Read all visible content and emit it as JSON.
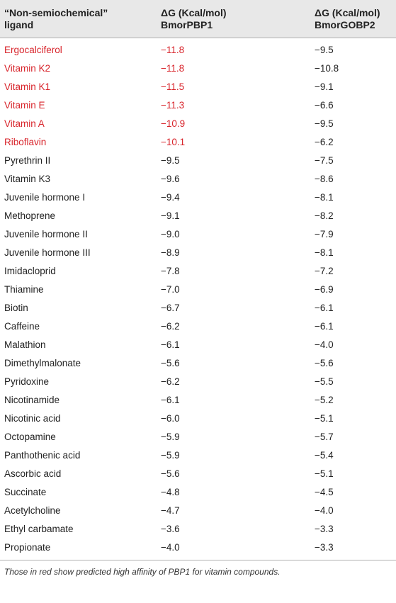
{
  "table": {
    "headers": [
      {
        "line1": "“Non-semiochemical”",
        "line2": "ligand"
      },
      {
        "line1": "ΔG (Kcal/mol)",
        "line2": "BmorPBP1"
      },
      {
        "line1": "ΔG (Kcal/mol)",
        "line2": "BmorGOBP2"
      }
    ],
    "highlight_color": "#d8232a",
    "rows": [
      {
        "ligand": "Ergocalciferol",
        "pbp1": "−11.8",
        "gobp2": "−9.5",
        "highlight": true
      },
      {
        "ligand": "Vitamin K2",
        "pbp1": "−11.8",
        "gobp2": "−10.8",
        "highlight": true
      },
      {
        "ligand": "Vitamin K1",
        "pbp1": "−11.5",
        "gobp2": "−9.1",
        "highlight": true
      },
      {
        "ligand": "Vitamin E",
        "pbp1": "−11.3",
        "gobp2": "−6.6",
        "highlight": true
      },
      {
        "ligand": "Vitamin A",
        "pbp1": "−10.9",
        "gobp2": "−9.5",
        "highlight": true
      },
      {
        "ligand": "Riboflavin",
        "pbp1": "−10.1",
        "gobp2": "−6.2",
        "highlight": true
      },
      {
        "ligand": "Pyrethrin II",
        "pbp1": "−9.5",
        "gobp2": "−7.5",
        "highlight": false
      },
      {
        "ligand": "Vitamin K3",
        "pbp1": "−9.6",
        "gobp2": "−8.6",
        "highlight": false
      },
      {
        "ligand": "Juvenile hormone I",
        "pbp1": "−9.4",
        "gobp2": "−8.1",
        "highlight": false
      },
      {
        "ligand": "Methoprene",
        "pbp1": "−9.1",
        "gobp2": "−8.2",
        "highlight": false
      },
      {
        "ligand": "Juvenile hormone II",
        "pbp1": "−9.0",
        "gobp2": "−7.9",
        "highlight": false
      },
      {
        "ligand": "Juvenile hormone III",
        "pbp1": "−8.9",
        "gobp2": "−8.1",
        "highlight": false
      },
      {
        "ligand": "Imidacloprid",
        "pbp1": "−7.8",
        "gobp2": "−7.2",
        "highlight": false
      },
      {
        "ligand": "Thiamine",
        "pbp1": "−7.0",
        "gobp2": "−6.9",
        "highlight": false
      },
      {
        "ligand": "Biotin",
        "pbp1": "−6.7",
        "gobp2": "−6.1",
        "highlight": false
      },
      {
        "ligand": "Caffeine",
        "pbp1": "−6.2",
        "gobp2": "−6.1",
        "highlight": false
      },
      {
        "ligand": "Malathion",
        "pbp1": "−6.1",
        "gobp2": "−4.0",
        "highlight": false
      },
      {
        "ligand": "Dimethylmalonate",
        "pbp1": "−5.6",
        "gobp2": "−5.6",
        "highlight": false
      },
      {
        "ligand": "Pyridoxine",
        "pbp1": "−6.2",
        "gobp2": "−5.5",
        "highlight": false
      },
      {
        "ligand": "Nicotinamide",
        "pbp1": "−6.1",
        "gobp2": "−5.2",
        "highlight": false
      },
      {
        "ligand": "Nicotinic acid",
        "pbp1": "−6.0",
        "gobp2": "−5.1",
        "highlight": false
      },
      {
        "ligand": "Octopamine",
        "pbp1": "−5.9",
        "gobp2": "−5.7",
        "highlight": false
      },
      {
        "ligand": "Panthothenic acid",
        "pbp1": "−5.9",
        "gobp2": "−5.4",
        "highlight": false
      },
      {
        "ligand": "Ascorbic acid",
        "pbp1": "−5.6",
        "gobp2": "−5.1",
        "highlight": false
      },
      {
        "ligand": "Succinate",
        "pbp1": "−4.8",
        "gobp2": "−4.5",
        "highlight": false
      },
      {
        "ligand": "Acetylcholine",
        "pbp1": "−4.7",
        "gobp2": "−4.0",
        "highlight": false
      },
      {
        "ligand": "Ethyl carbamate",
        "pbp1": "−3.6",
        "gobp2": "−3.3",
        "highlight": false
      },
      {
        "ligand": "Propionate",
        "pbp1": "−4.0",
        "gobp2": "−3.3",
        "highlight": false
      }
    ],
    "footnote": "Those in red show predicted high affinity of PBP1 for vitamin compounds."
  }
}
